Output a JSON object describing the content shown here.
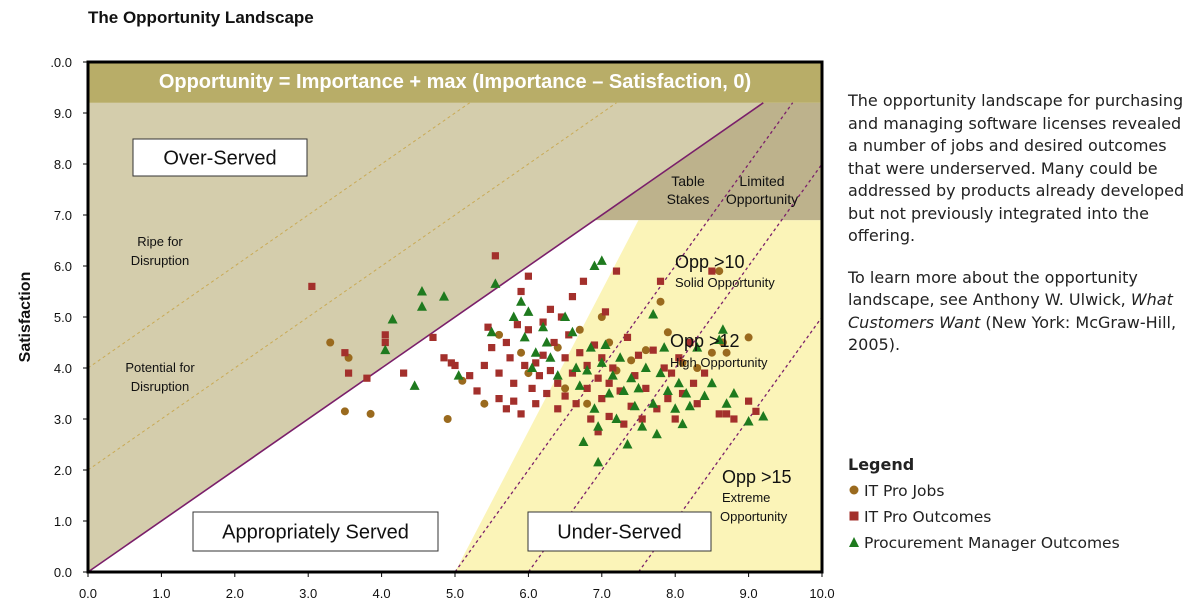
{
  "page_title": "The Opportunity Landscape",
  "chart_data": {
    "type": "scatter",
    "title": "",
    "ylabel": "Satisfaction",
    "xlabel": "",
    "xlim": [
      0,
      10
    ],
    "ylim": [
      0,
      10
    ],
    "x_ticks": [
      "0.0",
      "1.0",
      "2.0",
      "3.0",
      "4.0",
      "5.0",
      "6.0",
      "7.0",
      "8.0",
      "9.0",
      "10.0"
    ],
    "y_ticks": [
      "0.0",
      "1.0",
      "2.0",
      "3.0",
      "4.0",
      "5.0",
      "6.0",
      "7.0",
      "8.0",
      "9.0",
      ".0.0"
    ],
    "formula_banner": "Opportunity = Importance + max (Importance – Satisfaction, 0)",
    "boxed_labels": {
      "over_served": "Over-Served",
      "appropriately_served": "Appropriately Served",
      "under_served": "Under-Served"
    },
    "annotations": {
      "table_stakes": [
        "Table",
        "Stakes"
      ],
      "limited_opportunity": [
        "Limited",
        "Opportunity"
      ],
      "ripe": [
        "Ripe for",
        "Disruption"
      ],
      "potential": [
        "Potential for",
        "Disruption"
      ],
      "opp10": "Opp >10",
      "opp10_sub": "Solid Opportunity",
      "opp12": "Opp >12",
      "opp12_sub": "High Opportunity",
      "opp15": "Opp >15",
      "opp15_sub1": "Extreme",
      "opp15_sub2": "Opportunity"
    },
    "grid": false,
    "legend_position": "right",
    "colors": {
      "jobs": "#9a6a1e",
      "outcomes": "#a3302c",
      "procurement": "#1e7a1e",
      "banner": "#b8ad68",
      "over_served": "#d4cdac",
      "limited": "#bdb28c",
      "underserved": "#fbf4b8",
      "diagonal": "#7a1f6a"
    },
    "series": [
      {
        "name": "IT Pro Jobs",
        "marker": "circle",
        "points": [
          [
            3.3,
            4.5
          ],
          [
            3.5,
            3.15
          ],
          [
            3.55,
            4.2
          ],
          [
            3.85,
            3.1
          ],
          [
            4.9,
            3.0
          ],
          [
            5.1,
            3.75
          ],
          [
            5.4,
            3.3
          ],
          [
            5.6,
            4.65
          ],
          [
            5.9,
            4.3
          ],
          [
            6.0,
            3.9
          ],
          [
            6.4,
            4.4
          ],
          [
            6.5,
            3.6
          ],
          [
            6.7,
            4.75
          ],
          [
            6.8,
            3.3
          ],
          [
            7.0,
            5.0
          ],
          [
            7.1,
            4.5
          ],
          [
            7.2,
            3.95
          ],
          [
            7.4,
            4.15
          ],
          [
            7.6,
            4.35
          ],
          [
            7.8,
            5.3
          ],
          [
            7.9,
            4.7
          ],
          [
            8.1,
            4.1
          ],
          [
            8.3,
            4.0
          ],
          [
            8.5,
            4.3
          ],
          [
            8.6,
            5.9
          ],
          [
            8.65,
            4.5
          ],
          [
            8.7,
            4.3
          ],
          [
            9.0,
            4.6
          ]
        ]
      },
      {
        "name": "IT Pro Outcomes",
        "marker": "square",
        "points": [
          [
            3.05,
            5.6
          ],
          [
            3.5,
            4.3
          ],
          [
            3.55,
            3.9
          ],
          [
            3.8,
            3.8
          ],
          [
            4.05,
            4.65
          ],
          [
            4.05,
            4.5
          ],
          [
            4.3,
            3.9
          ],
          [
            4.7,
            4.6
          ],
          [
            4.85,
            4.2
          ],
          [
            4.95,
            4.1
          ],
          [
            5.0,
            4.05
          ],
          [
            5.2,
            3.85
          ],
          [
            5.3,
            3.55
          ],
          [
            5.4,
            4.05
          ],
          [
            5.45,
            4.8
          ],
          [
            5.5,
            4.4
          ],
          [
            5.55,
            6.2
          ],
          [
            5.6,
            3.9
          ],
          [
            5.6,
            3.4
          ],
          [
            5.7,
            3.2
          ],
          [
            5.7,
            4.5
          ],
          [
            5.75,
            4.2
          ],
          [
            5.8,
            3.7
          ],
          [
            5.8,
            3.35
          ],
          [
            5.85,
            4.85
          ],
          [
            5.9,
            5.5
          ],
          [
            5.9,
            3.1
          ],
          [
            5.95,
            4.05
          ],
          [
            6.0,
            5.8
          ],
          [
            6.0,
            4.75
          ],
          [
            6.05,
            3.6
          ],
          [
            6.1,
            4.1
          ],
          [
            6.1,
            3.3
          ],
          [
            6.15,
            3.85
          ],
          [
            6.2,
            4.9
          ],
          [
            6.2,
            4.25
          ],
          [
            6.25,
            3.5
          ],
          [
            6.3,
            5.15
          ],
          [
            6.3,
            3.95
          ],
          [
            6.35,
            4.5
          ],
          [
            6.4,
            3.7
          ],
          [
            6.4,
            3.2
          ],
          [
            6.45,
            5.0
          ],
          [
            6.5,
            4.2
          ],
          [
            6.5,
            3.45
          ],
          [
            6.55,
            4.65
          ],
          [
            6.6,
            5.4
          ],
          [
            6.6,
            3.9
          ],
          [
            6.65,
            3.3
          ],
          [
            6.7,
            4.3
          ],
          [
            6.75,
            5.7
          ],
          [
            6.8,
            4.05
          ],
          [
            6.8,
            3.6
          ],
          [
            6.85,
            3.0
          ],
          [
            6.9,
            4.45
          ],
          [
            6.95,
            3.8
          ],
          [
            6.95,
            2.75
          ],
          [
            7.0,
            4.2
          ],
          [
            7.0,
            3.4
          ],
          [
            7.05,
            5.1
          ],
          [
            7.1,
            3.7
          ],
          [
            7.1,
            3.05
          ],
          [
            7.15,
            4.0
          ],
          [
            7.2,
            5.9
          ],
          [
            7.25,
            3.55
          ],
          [
            7.3,
            2.9
          ],
          [
            7.35,
            4.6
          ],
          [
            7.4,
            3.25
          ],
          [
            7.45,
            3.85
          ],
          [
            7.5,
            4.25
          ],
          [
            7.55,
            3.0
          ],
          [
            7.6,
            3.6
          ],
          [
            7.7,
            4.35
          ],
          [
            7.75,
            3.2
          ],
          [
            7.8,
            5.7
          ],
          [
            7.85,
            4.0
          ],
          [
            7.9,
            3.4
          ],
          [
            7.95,
            3.9
          ],
          [
            8.0,
            3.0
          ],
          [
            8.05,
            4.2
          ],
          [
            8.1,
            3.5
          ],
          [
            8.2,
            4.5
          ],
          [
            8.25,
            3.7
          ],
          [
            8.3,
            3.3
          ],
          [
            8.4,
            3.9
          ],
          [
            8.5,
            5.9
          ],
          [
            8.6,
            3.1
          ],
          [
            8.7,
            3.1
          ],
          [
            8.8,
            3.0
          ],
          [
            9.0,
            3.35
          ],
          [
            9.1,
            3.15
          ]
        ]
      },
      {
        "name": "Procurement Manager Outcomes",
        "marker": "triangle",
        "points": [
          [
            4.05,
            4.35
          ],
          [
            4.15,
            4.95
          ],
          [
            4.45,
            3.65
          ],
          [
            4.55,
            5.5
          ],
          [
            4.55,
            5.2
          ],
          [
            4.85,
            5.4
          ],
          [
            5.05,
            3.85
          ],
          [
            5.5,
            4.7
          ],
          [
            5.55,
            5.65
          ],
          [
            5.8,
            5.0
          ],
          [
            5.9,
            5.3
          ],
          [
            5.95,
            4.6
          ],
          [
            6.0,
            5.1
          ],
          [
            6.05,
            4.0
          ],
          [
            6.1,
            4.3
          ],
          [
            6.2,
            4.8
          ],
          [
            6.25,
            4.5
          ],
          [
            6.3,
            4.2
          ],
          [
            6.4,
            3.85
          ],
          [
            6.5,
            5.0
          ],
          [
            6.6,
            4.7
          ],
          [
            6.65,
            4.0
          ],
          [
            6.7,
            3.65
          ],
          [
            6.75,
            2.55
          ],
          [
            6.8,
            3.95
          ],
          [
            6.85,
            4.4
          ],
          [
            6.9,
            6.0
          ],
          [
            6.9,
            3.2
          ],
          [
            6.95,
            2.85
          ],
          [
            6.95,
            2.15
          ],
          [
            7.0,
            6.1
          ],
          [
            7.0,
            4.1
          ],
          [
            7.05,
            4.45
          ],
          [
            7.1,
            3.5
          ],
          [
            7.15,
            3.85
          ],
          [
            7.2,
            3.0
          ],
          [
            7.25,
            4.2
          ],
          [
            7.3,
            3.55
          ],
          [
            7.35,
            2.5
          ],
          [
            7.4,
            3.8
          ],
          [
            7.45,
            3.25
          ],
          [
            7.5,
            3.6
          ],
          [
            7.55,
            2.85
          ],
          [
            7.6,
            4.0
          ],
          [
            7.7,
            5.05
          ],
          [
            7.7,
            3.3
          ],
          [
            7.75,
            2.7
          ],
          [
            7.8,
            3.9
          ],
          [
            7.85,
            4.4
          ],
          [
            7.9,
            3.55
          ],
          [
            8.0,
            3.2
          ],
          [
            8.05,
            3.7
          ],
          [
            8.1,
            2.9
          ],
          [
            8.15,
            3.5
          ],
          [
            8.2,
            3.25
          ],
          [
            8.3,
            4.4
          ],
          [
            8.4,
            3.45
          ],
          [
            8.5,
            3.7
          ],
          [
            8.6,
            4.55
          ],
          [
            8.65,
            4.75
          ],
          [
            8.7,
            3.3
          ],
          [
            8.8,
            3.5
          ],
          [
            9.0,
            2.95
          ],
          [
            9.2,
            3.05
          ]
        ]
      }
    ]
  },
  "sidebar": {
    "para1": "The opportunity landscape for purchasing and managing software licenses revealed a number of jobs and desired outcomes that were underserved. Many could be addressed by products already developed but not previously integrated into the offering.",
    "para2_prefix": "To learn more about the opportunity landscape, see Anthony W. Ulwick, ",
    "para2_book": "What Customers Want",
    "para2_suffix": " (New York: McGraw-Hill, 2005)."
  },
  "legend": {
    "title": "Legend",
    "items": [
      {
        "label": "IT Pro Jobs",
        "icon": "brown-circle-icon"
      },
      {
        "label": "IT Pro Outcomes",
        "icon": "red-square-icon"
      },
      {
        "label": "Procurement Manager Outcomes",
        "icon": "green-triangle-icon"
      }
    ]
  }
}
